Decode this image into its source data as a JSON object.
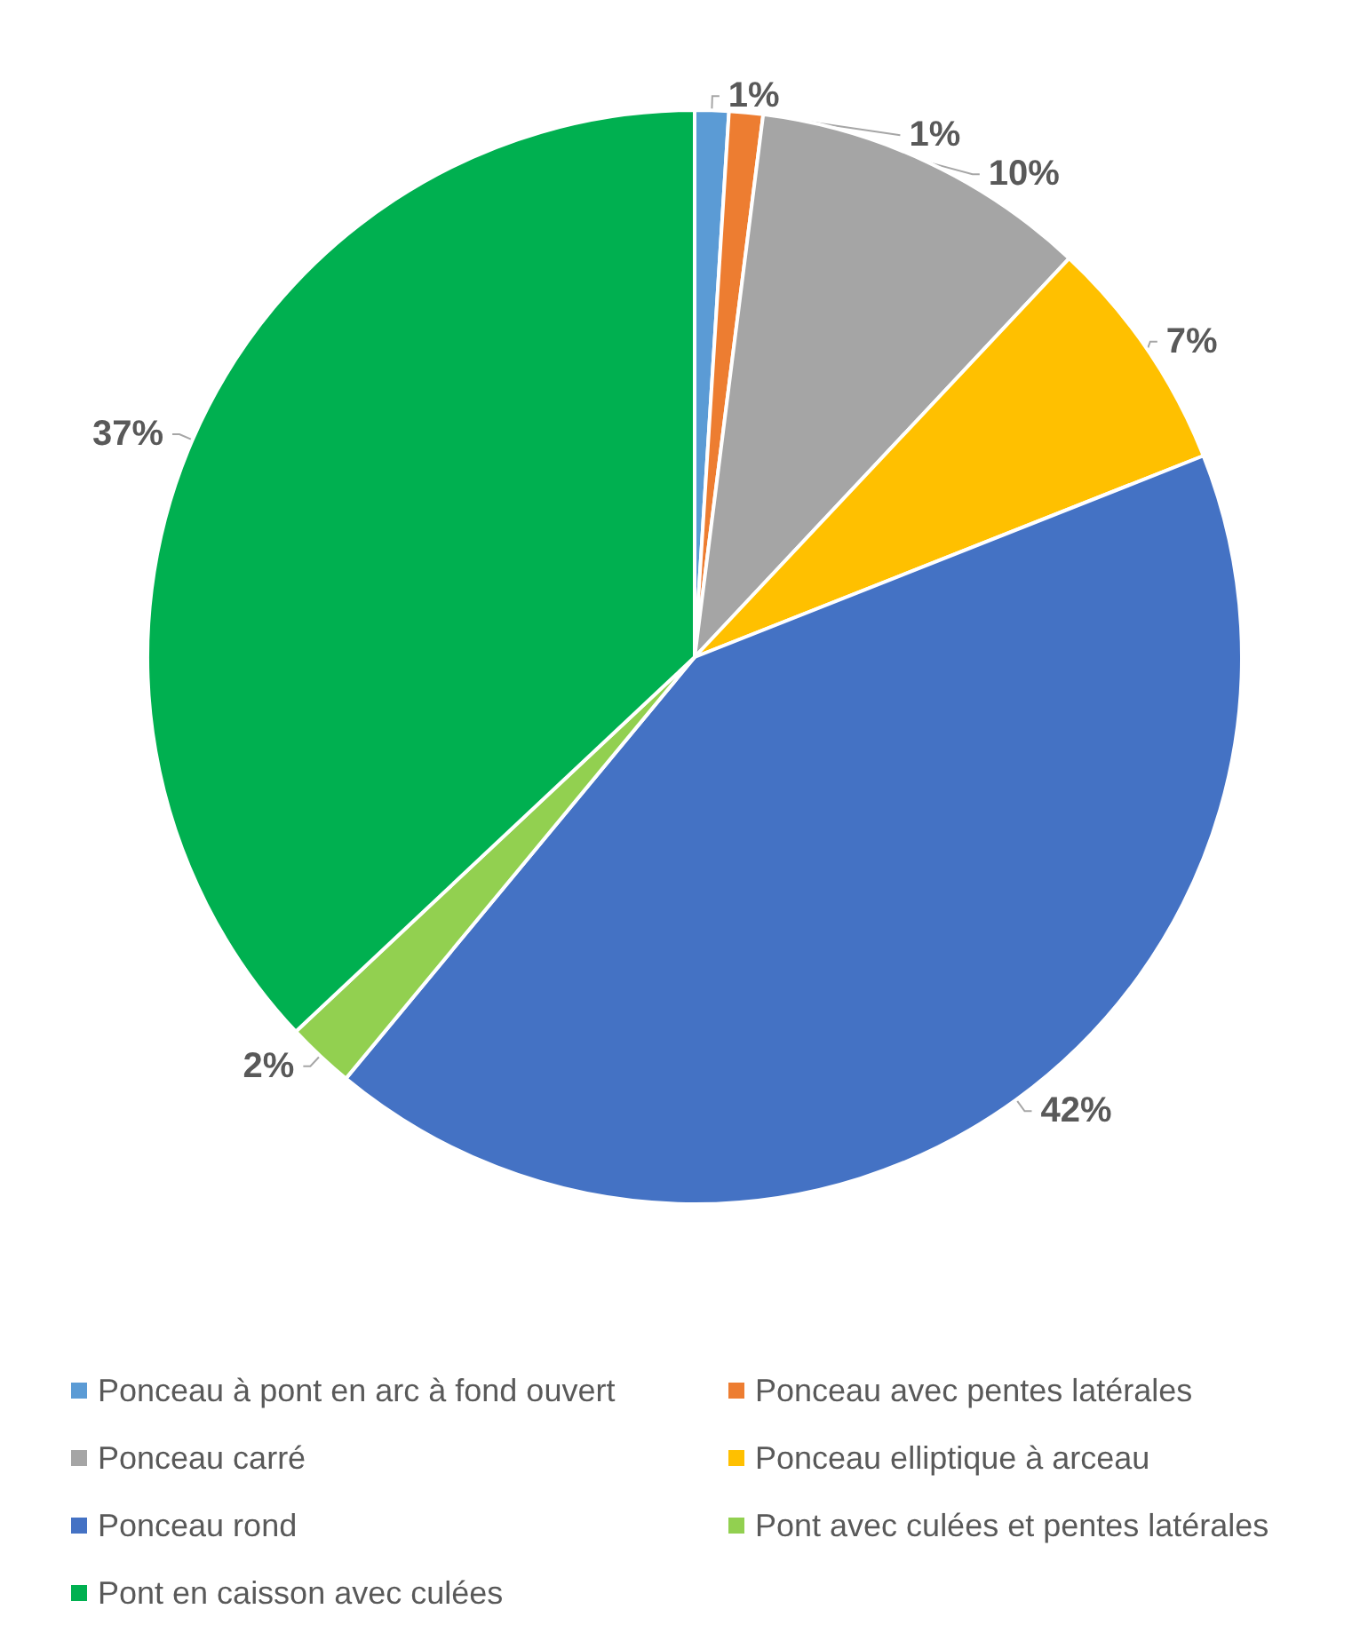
{
  "chart_data": {
    "type": "pie",
    "categories": [
      "Ponceau à pont en arc à fond ouvert",
      "Ponceau avec pentes latérales",
      "Ponceau carré",
      "Ponceau elliptique à arceau",
      "Ponceau rond",
      "Pont avec culées et pentes latérales",
      "Pont en caisson avec culées"
    ],
    "values": [
      1,
      1,
      10,
      7,
      42,
      2,
      37
    ],
    "colors": [
      "#5b9bd5",
      "#ed7d31",
      "#a5a5a5",
      "#ffc000",
      "#4472c4",
      "#92d050",
      "#00b050"
    ],
    "value_labels": [
      "1%",
      "1%",
      "10%",
      "7%",
      "42%",
      "2%",
      "37%"
    ],
    "legend": "bottom"
  }
}
